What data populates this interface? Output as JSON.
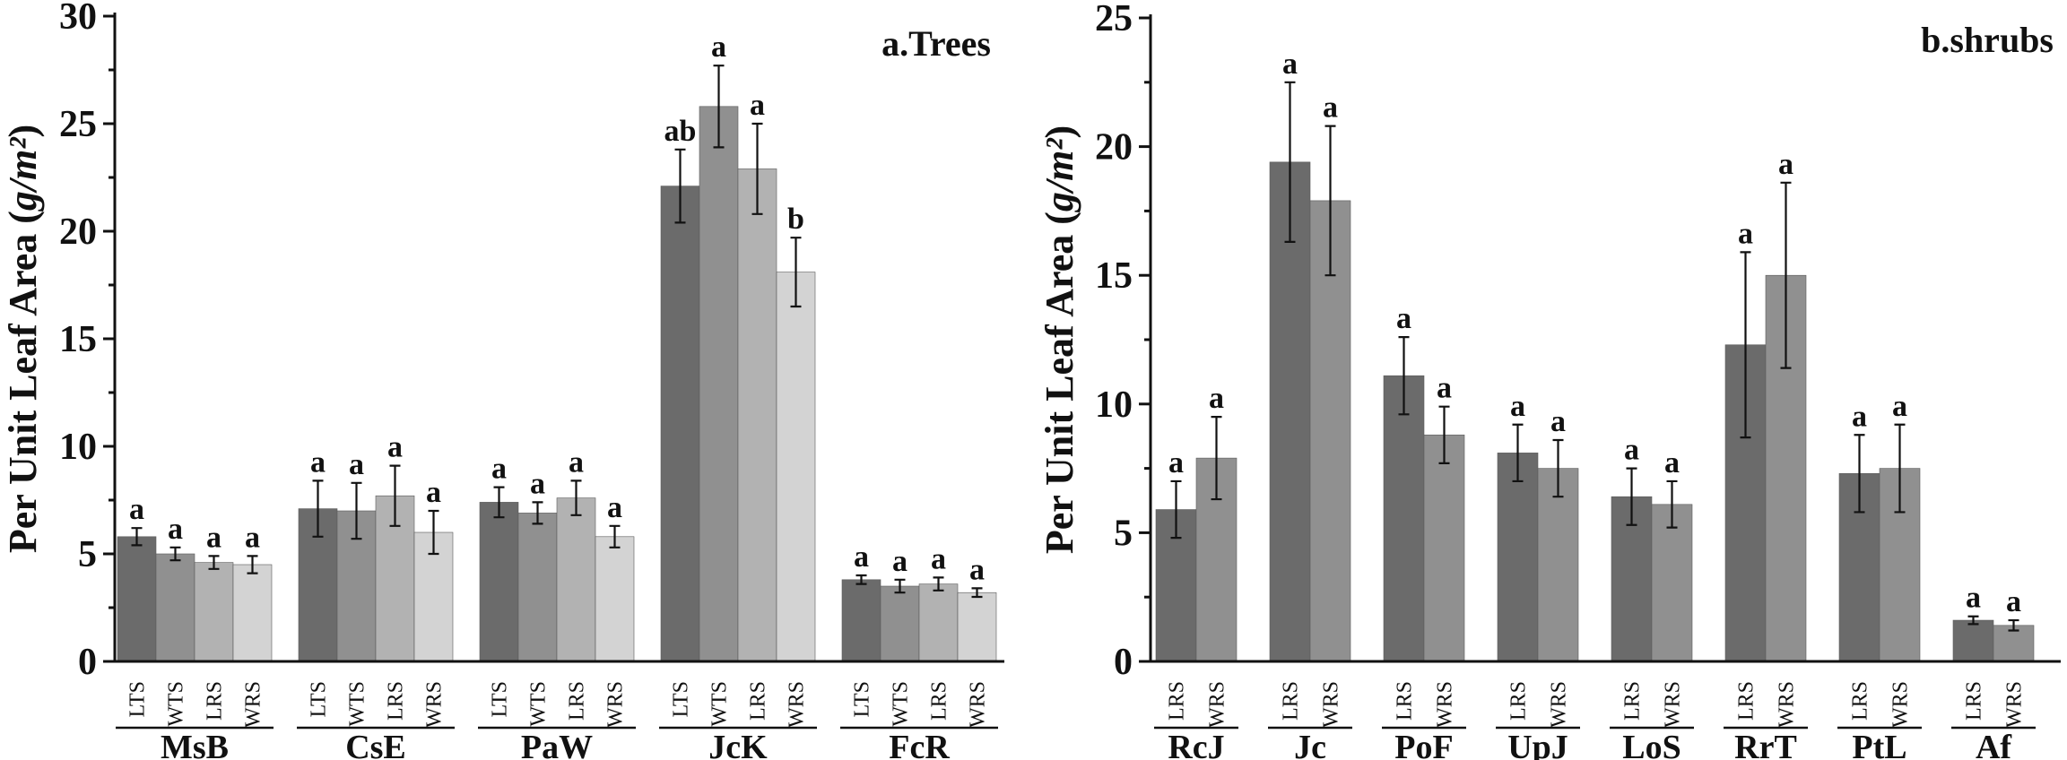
{
  "chart_data": [
    {
      "type": "bar",
      "title": "a.Trees",
      "ylabel": "Per Unit Leaf Area",
      "yunit": "g/m²",
      "ylim": [
        0,
        30
      ],
      "yticks": [
        0,
        5,
        10,
        15,
        20,
        25,
        30
      ],
      "series_names": [
        "LTS",
        "WTS",
        "LRS",
        "WRS"
      ],
      "colors": [
        "#6b6b6b",
        "#909090",
        "#b2b2b2",
        "#d3d3d3"
      ],
      "groups": [
        {
          "name": "MsB",
          "bars": [
            {
              "label": "LTS",
              "value": 5.8,
              "err": 0.4,
              "sig": "a"
            },
            {
              "label": "WTS",
              "value": 5.0,
              "err": 0.3,
              "sig": "a"
            },
            {
              "label": "LRS",
              "value": 4.6,
              "err": 0.3,
              "sig": "a"
            },
            {
              "label": "WRS",
              "value": 4.5,
              "err": 0.4,
              "sig": "a"
            }
          ]
        },
        {
          "name": "CsE",
          "bars": [
            {
              "label": "LTS",
              "value": 7.1,
              "err": 1.3,
              "sig": "a"
            },
            {
              "label": "WTS",
              "value": 7.0,
              "err": 1.3,
              "sig": "a"
            },
            {
              "label": "LRS",
              "value": 7.7,
              "err": 1.4,
              "sig": "a"
            },
            {
              "label": "WRS",
              "value": 6.0,
              "err": 1.0,
              "sig": "a"
            }
          ]
        },
        {
          "name": "PaW",
          "bars": [
            {
              "label": "LTS",
              "value": 7.4,
              "err": 0.7,
              "sig": "a"
            },
            {
              "label": "WTS",
              "value": 6.9,
              "err": 0.5,
              "sig": "a"
            },
            {
              "label": "LRS",
              "value": 7.6,
              "err": 0.8,
              "sig": "a"
            },
            {
              "label": "WRS",
              "value": 5.8,
              "err": 0.5,
              "sig": "a"
            }
          ]
        },
        {
          "name": "JcK",
          "bars": [
            {
              "label": "LTS",
              "value": 22.1,
              "err": 1.7,
              "sig": "ab"
            },
            {
              "label": "WTS",
              "value": 25.8,
              "err": 1.9,
              "sig": "a"
            },
            {
              "label": "LRS",
              "value": 22.9,
              "err": 2.1,
              "sig": "a"
            },
            {
              "label": "WRS",
              "value": 18.1,
              "err": 1.6,
              "sig": "b"
            }
          ]
        },
        {
          "name": "FcR",
          "bars": [
            {
              "label": "LTS",
              "value": 3.8,
              "err": 0.2,
              "sig": "a"
            },
            {
              "label": "WTS",
              "value": 3.5,
              "err": 0.3,
              "sig": "a"
            },
            {
              "label": "LRS",
              "value": 3.6,
              "err": 0.3,
              "sig": "a"
            },
            {
              "label": "WRS",
              "value": 3.2,
              "err": 0.2,
              "sig": "a"
            }
          ]
        }
      ]
    },
    {
      "type": "bar",
      "title": "b.shrubs",
      "ylabel": "Per Unit Leaf Area",
      "yunit": "g/m²",
      "ylim": [
        0,
        25
      ],
      "yticks": [
        0,
        5,
        10,
        15,
        20,
        25
      ],
      "series_names": [
        "LRS",
        "WRS"
      ],
      "colors": [
        "#6b6b6b",
        "#909090"
      ],
      "groups": [
        {
          "name": "RcJ",
          "bars": [
            {
              "label": "LRS",
              "value": 5.9,
              "err": 1.1,
              "sig": "a"
            },
            {
              "label": "WRS",
              "value": 7.9,
              "err": 1.6,
              "sig": "a"
            }
          ]
        },
        {
          "name": "Jc",
          "bars": [
            {
              "label": "LRS",
              "value": 19.4,
              "err": 3.1,
              "sig": "a"
            },
            {
              "label": "WRS",
              "value": 17.9,
              "err": 2.9,
              "sig": "a"
            }
          ]
        },
        {
          "name": "PoF",
          "bars": [
            {
              "label": "LRS",
              "value": 11.1,
              "err": 1.5,
              "sig": "a"
            },
            {
              "label": "WRS",
              "value": 8.8,
              "err": 1.1,
              "sig": "a"
            }
          ]
        },
        {
          "name": "UpJ",
          "bars": [
            {
              "label": "LRS",
              "value": 8.1,
              "err": 1.1,
              "sig": "a"
            },
            {
              "label": "WRS",
              "value": 7.5,
              "err": 1.1,
              "sig": "a"
            }
          ]
        },
        {
          "name": "LoS",
          "bars": [
            {
              "label": "LRS",
              "value": 6.4,
              "err": 1.1,
              "sig": "a"
            },
            {
              "label": "WRS",
              "value": 6.1,
              "err": 0.9,
              "sig": "a"
            }
          ]
        },
        {
          "name": "RrT",
          "bars": [
            {
              "label": "LRS",
              "value": 12.3,
              "err": 3.6,
              "sig": "a"
            },
            {
              "label": "WRS",
              "value": 15.0,
              "err": 3.6,
              "sig": "a"
            }
          ]
        },
        {
          "name": "PtL",
          "bars": [
            {
              "label": "LRS",
              "value": 7.3,
              "err": 1.5,
              "sig": "a"
            },
            {
              "label": "WRS",
              "value": 7.5,
              "err": 1.7,
              "sig": "a"
            }
          ]
        },
        {
          "name": "Af",
          "bars": [
            {
              "label": "LRS",
              "value": 1.6,
              "err": 0.15,
              "sig": "a"
            },
            {
              "label": "WRS",
              "value": 1.4,
              "err": 0.2,
              "sig": "a"
            }
          ]
        }
      ]
    }
  ]
}
